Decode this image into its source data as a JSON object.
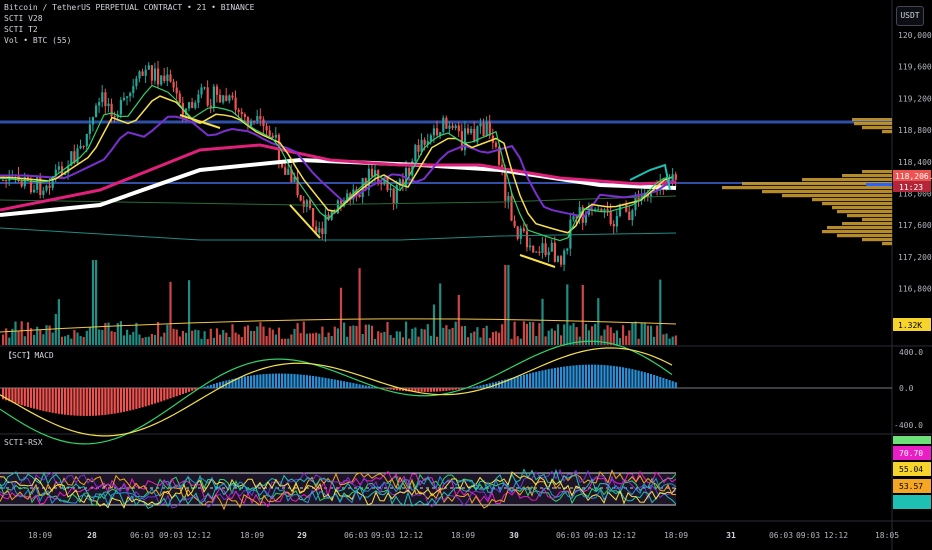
{
  "legend": {
    "symbol": "Bitcoin / TetherUS PERPETUAL CONTRACT • 21 • BINANCE",
    "ind1": "SCTI V28",
    "ind2": "SCTI T2",
    "ind3": "Vol • BTC (55)"
  },
  "currency": "USDT",
  "price_axis": [
    "120,000.0",
    "119,600.0",
    "119,200.0",
    "118,800.0",
    "118,400.0",
    "118,000.0",
    "117,600.0",
    "117,200.0",
    "116,800.0"
  ],
  "price_tags": {
    "last": "118,206.6",
    "countdown": "11:23",
    "volume": "1.32K"
  },
  "macd": {
    "label": "【SCT】MACD",
    "axis": [
      "400.0",
      "0.0",
      "-400.0"
    ]
  },
  "rsi": {
    "label": "SCTI-RSX",
    "tags": [
      "70.70",
      "55.04",
      "53.57"
    ]
  },
  "time_axis": [
    "18:09",
    "28",
    "06:03",
    "09:03",
    "12:12",
    "18:09",
    "29",
    "06:03",
    "09:03",
    "12:12",
    "18:09",
    "30",
    "06:03",
    "09:03",
    "12:12",
    "18:09",
    "31",
    "06:03",
    "09:03",
    "12:12",
    "18:05"
  ],
  "colors": {
    "up": "#26a69a",
    "down": "#ef5350",
    "hline": "#2962ff"
  }
}
